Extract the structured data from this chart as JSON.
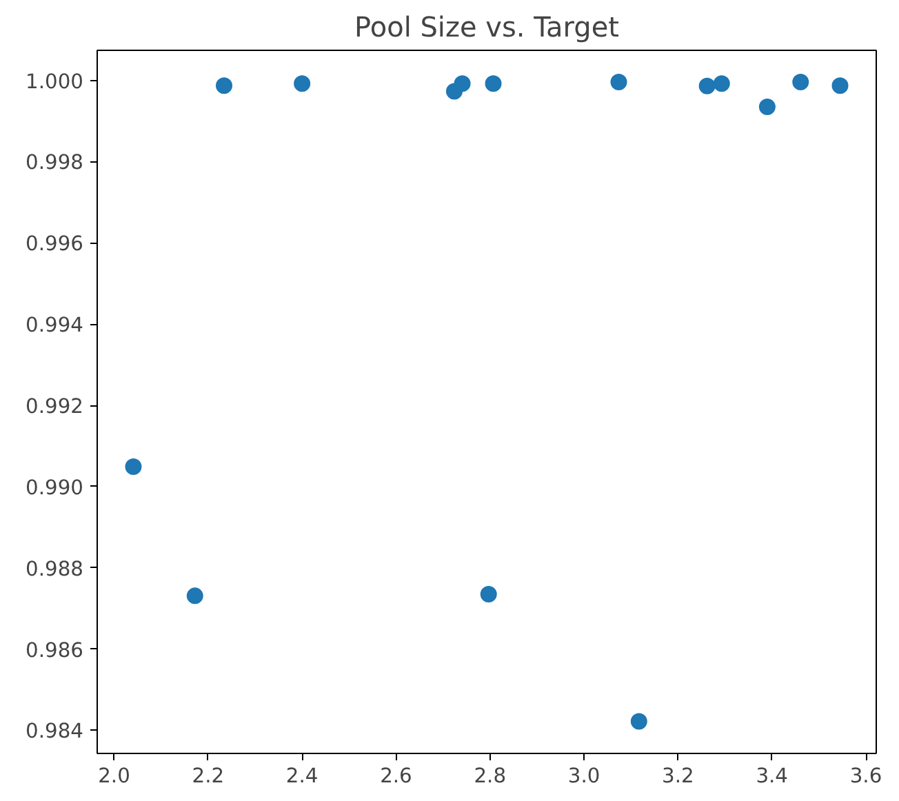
{
  "chart_data": {
    "type": "scatter",
    "title": "Pool Size vs. Target",
    "x": [
      2.041,
      2.172,
      2.234,
      2.4,
      2.724,
      2.741,
      2.807,
      2.797,
      3.074,
      3.117,
      3.262,
      3.293,
      3.39,
      3.461,
      3.545
    ],
    "series": [
      {
        "color": "#1f77b4",
        "values": [
          0.99049,
          0.98731,
          0.99987,
          0.99992,
          0.99973,
          0.99992,
          0.99992,
          0.98735,
          0.99996,
          0.98422,
          0.99986,
          0.99992,
          0.99935,
          0.99996,
          0.99987
        ]
      }
    ],
    "xlim": [
      1.964,
      3.622
    ],
    "ylim": [
      0.98343,
      1.00074
    ],
    "xticks": [
      {
        "value": 2.0,
        "label": "2.0"
      },
      2.2,
      2.4,
      2.6,
      2.8,
      {
        "value": 3.0,
        "label": "3.0"
      },
      3.2,
      3.4,
      3.6
    ],
    "yticks": [
      {
        "value": 0.984,
        "label": "0.984"
      },
      {
        "value": 0.986,
        "label": "0.986"
      },
      {
        "value": 0.988,
        "label": "0.988"
      },
      {
        "value": 0.99,
        "label": "0.990"
      },
      {
        "value": 0.992,
        "label": "0.992"
      },
      {
        "value": 0.994,
        "label": "0.994"
      },
      {
        "value": 0.996,
        "label": "0.996"
      },
      {
        "value": 0.998,
        "label": "0.998"
      },
      {
        "value": 1.0,
        "label": "1.000"
      }
    ],
    "grid": false,
    "marker": "circle"
  }
}
